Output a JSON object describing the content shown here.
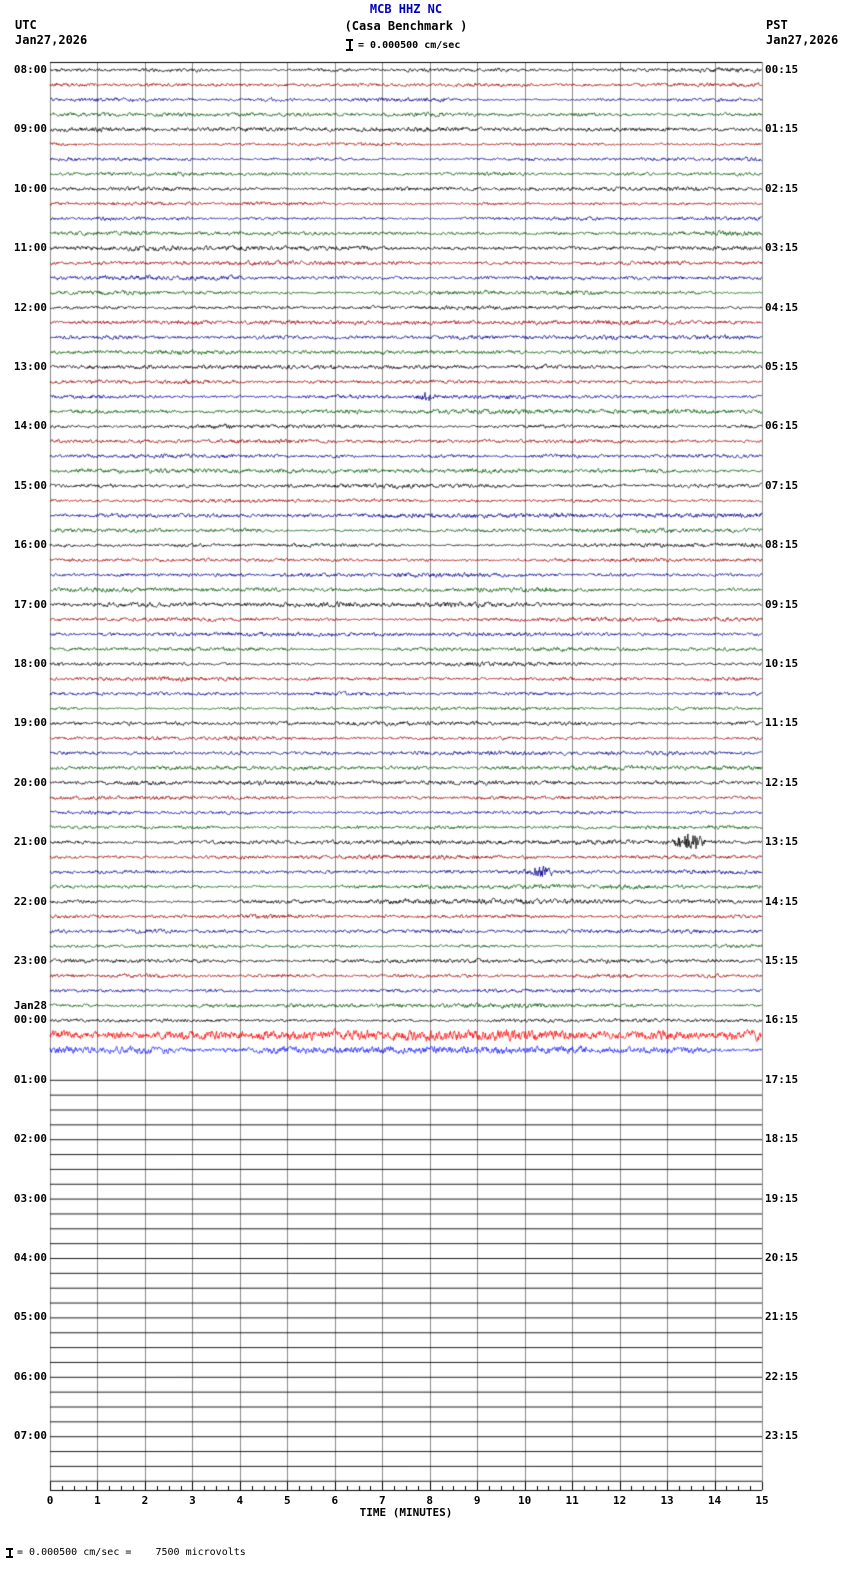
{
  "header": {
    "station": "MCB HHZ NC",
    "location": "(Casa Benchmark )",
    "scale_label": "= 0.000500 cm/sec",
    "utc_label": "UTC",
    "utc_date": "Jan27,2026",
    "pst_label": "PST",
    "pst_date": "Jan27,2026",
    "title_color": "#0000bb"
  },
  "footer": {
    "axis_label": "TIME (MINUTES)",
    "scale_note": "= 0.000500 cm/sec =    7500 microvolts"
  },
  "chart_data": {
    "type": "line",
    "description": "24-hour helicorder seismogram; 96 traces of 15 minutes each, colors cycling black/red/blue/green; traces active from 08:00 UTC Jan27 through ~00:45 UTC Jan28, flat (no data) afterwards",
    "xlabel": "TIME (MINUTES)",
    "x_ticks": [
      "0",
      "1",
      "2",
      "3",
      "4",
      "5",
      "6",
      "7",
      "8",
      "9",
      "10",
      "11",
      "12",
      "13",
      "14",
      "15"
    ],
    "minutes_per_trace": 15,
    "trace_colors": [
      "#000000",
      "#a00000",
      "#000090",
      "#005a00"
    ],
    "modes": {
      "a": "active-noise",
      "f": "flat-no-data",
      "b": "blank"
    },
    "rows": [
      {
        "u": "08:00",
        "p": "00:15",
        "m": "a"
      },
      {
        "m": "a"
      },
      {
        "m": "a"
      },
      {
        "m": "a"
      },
      {
        "u": "09:00",
        "p": "01:15",
        "m": "a"
      },
      {
        "m": "a"
      },
      {
        "m": "a"
      },
      {
        "m": "a"
      },
      {
        "u": "10:00",
        "p": "02:15",
        "m": "a"
      },
      {
        "m": "a"
      },
      {
        "m": "a"
      },
      {
        "m": "a"
      },
      {
        "u": "11:00",
        "p": "03:15",
        "m": "a"
      },
      {
        "m": "a"
      },
      {
        "m": "a"
      },
      {
        "m": "a"
      },
      {
        "u": "12:00",
        "p": "04:15",
        "m": "a"
      },
      {
        "m": "a"
      },
      {
        "m": "a"
      },
      {
        "m": "a"
      },
      {
        "u": "13:00",
        "p": "05:15",
        "m": "a"
      },
      {
        "m": "a"
      },
      {
        "m": "a"
      },
      {
        "m": "a"
      },
      {
        "u": "14:00",
        "p": "06:15",
        "m": "a"
      },
      {
        "m": "a"
      },
      {
        "m": "a"
      },
      {
        "m": "a"
      },
      {
        "u": "15:00",
        "p": "07:15",
        "m": "a"
      },
      {
        "m": "a"
      },
      {
        "m": "a"
      },
      {
        "m": "a"
      },
      {
        "u": "16:00",
        "p": "08:15",
        "m": "a"
      },
      {
        "m": "a"
      },
      {
        "m": "a"
      },
      {
        "m": "a"
      },
      {
        "u": "17:00",
        "p": "09:15",
        "m": "a"
      },
      {
        "m": "a"
      },
      {
        "m": "a"
      },
      {
        "m": "a"
      },
      {
        "u": "18:00",
        "p": "10:15",
        "m": "a"
      },
      {
        "m": "a"
      },
      {
        "m": "a"
      },
      {
        "m": "a"
      },
      {
        "u": "19:00",
        "p": "11:15",
        "m": "a"
      },
      {
        "m": "a"
      },
      {
        "m": "a"
      },
      {
        "m": "a"
      },
      {
        "u": "20:00",
        "p": "12:15",
        "m": "a"
      },
      {
        "m": "a"
      },
      {
        "m": "a"
      },
      {
        "m": "a"
      },
      {
        "u": "21:00",
        "p": "13:15",
        "m": "a"
      },
      {
        "m": "a"
      },
      {
        "m": "a"
      },
      {
        "m": "a"
      },
      {
        "u": "22:00",
        "p": "14:15",
        "m": "a"
      },
      {
        "m": "a"
      },
      {
        "m": "a"
      },
      {
        "m": "a"
      },
      {
        "u": "23:00",
        "p": "15:15",
        "m": "a"
      },
      {
        "m": "a"
      },
      {
        "m": "a"
      },
      {
        "m": "a"
      },
      {
        "u": "00:00",
        "u2": "Jan28",
        "p": "16:15",
        "m": "a"
      },
      {
        "m": "a",
        "c": "#ff0000",
        "amp": 2.4
      },
      {
        "m": "a",
        "c": "#2020ff",
        "amp": 2.0
      },
      {
        "m": "b"
      },
      {
        "u": "01:00",
        "p": "17:15",
        "m": "f"
      },
      {
        "m": "f"
      },
      {
        "m": "f"
      },
      {
        "m": "f"
      },
      {
        "u": "02:00",
        "p": "18:15",
        "m": "f"
      },
      {
        "m": "f"
      },
      {
        "m": "f"
      },
      {
        "m": "f"
      },
      {
        "u": "03:00",
        "p": "19:15",
        "m": "f"
      },
      {
        "m": "f"
      },
      {
        "m": "f"
      },
      {
        "m": "f"
      },
      {
        "u": "04:00",
        "p": "20:15",
        "m": "f"
      },
      {
        "m": "f"
      },
      {
        "m": "f"
      },
      {
        "m": "f"
      },
      {
        "u": "05:00",
        "p": "21:15",
        "m": "f"
      },
      {
        "m": "f"
      },
      {
        "m": "f"
      },
      {
        "m": "f"
      },
      {
        "u": "06:00",
        "p": "22:15",
        "m": "f"
      },
      {
        "m": "f"
      },
      {
        "m": "f"
      },
      {
        "m": "f"
      },
      {
        "u": "07:00",
        "p": "23:15",
        "m": "f"
      },
      {
        "m": "f"
      },
      {
        "m": "f"
      },
      {
        "m": "f"
      }
    ],
    "events": [
      {
        "row": 22,
        "minute": 7.9,
        "amp": 4,
        "dur": 0.15
      },
      {
        "row": 52,
        "minute": 13.45,
        "amp": 8,
        "dur": 0.3
      },
      {
        "row": 54,
        "minute": 10.35,
        "amp": 5,
        "dur": 0.2
      }
    ]
  }
}
